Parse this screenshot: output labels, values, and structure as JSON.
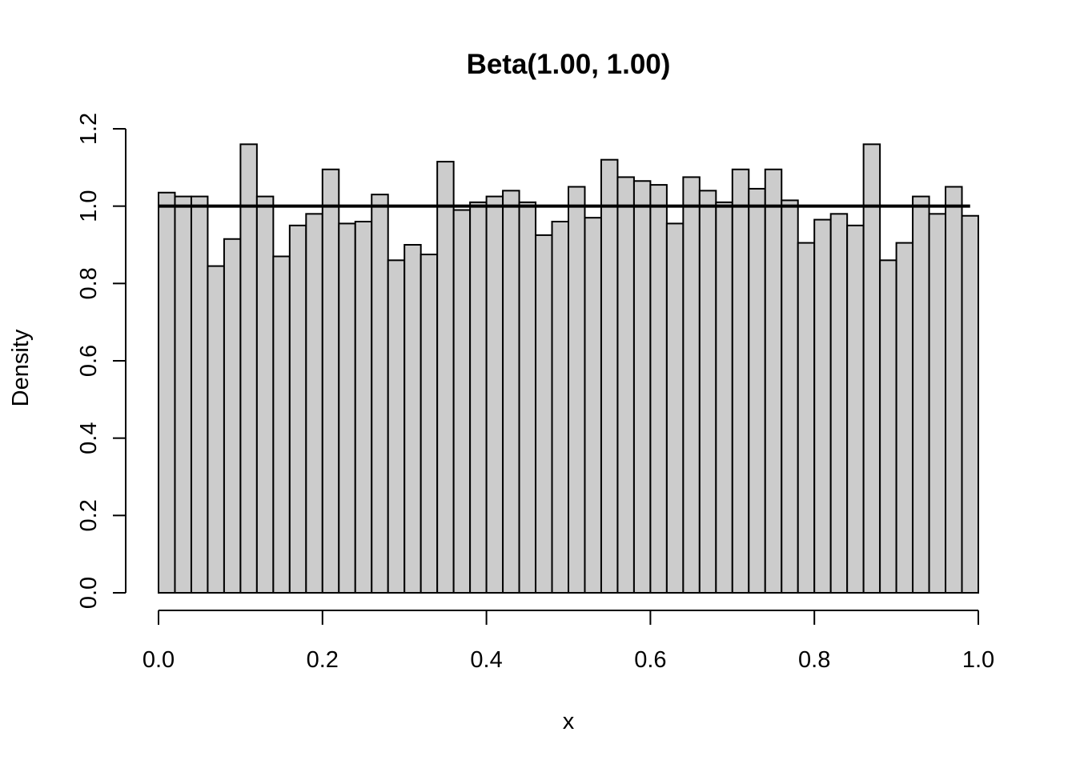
{
  "chart_data": {
    "type": "bar",
    "subtype": "histogram",
    "title": "Beta(1.00, 1.00)",
    "xlabel": "x",
    "ylabel": "Density",
    "xlim": [
      0,
      1
    ],
    "ylim": [
      0,
      1.2
    ],
    "x_ticks": [
      "0.0",
      "0.2",
      "0.4",
      "0.6",
      "0.8",
      "1.0"
    ],
    "y_ticks": [
      "0.0",
      "0.2",
      "0.4",
      "0.6",
      "0.8",
      "1.0",
      "1.2"
    ],
    "bin_width": 0.02,
    "bins_start": 0,
    "values": [
      1.035,
      1.025,
      1.025,
      0.845,
      0.915,
      1.16,
      1.025,
      0.87,
      0.95,
      0.98,
      1.095,
      0.955,
      0.96,
      1.03,
      0.86,
      0.9,
      0.875,
      1.115,
      0.99,
      1.01,
      1.025,
      1.04,
      1.01,
      0.925,
      0.96,
      1.05,
      0.97,
      1.12,
      1.075,
      1.065,
      1.055,
      0.955,
      1.075,
      1.04,
      1.01,
      1.095,
      1.045,
      1.095,
      1.015,
      0.905,
      0.965,
      0.98,
      0.95,
      1.16,
      0.86,
      0.905,
      1.025,
      0.98,
      1.05,
      0.975
    ],
    "density_line": {
      "y": 1.0,
      "x_from": 0,
      "x_to": 0.99
    },
    "grid": false,
    "colors": {
      "bar_fill": "#cccccc",
      "bar_stroke": "#000000",
      "line": "#000000"
    }
  }
}
